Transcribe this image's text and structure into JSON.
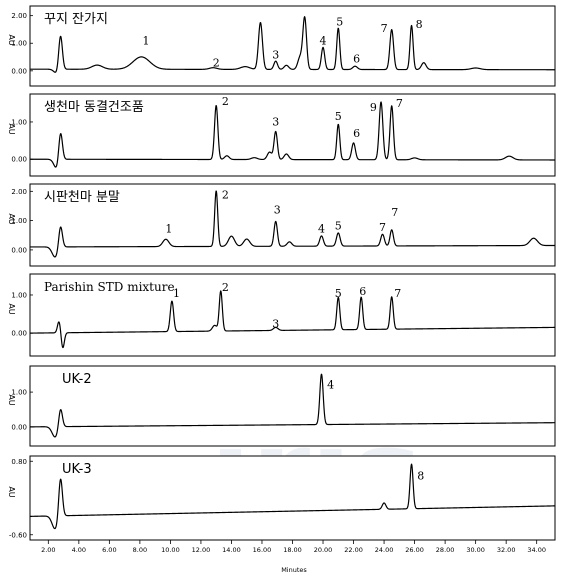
{
  "chart_data": {
    "type": "line",
    "xlabel": "Minutes",
    "xlim": [
      0.8,
      35.2
    ],
    "xticks": [
      "2.00",
      "4.00",
      "6.00",
      "8.00",
      "10.00",
      "12.00",
      "14.00",
      "16.00",
      "18.00",
      "20.00",
      "22.00",
      "24.00",
      "26.00",
      "28.00",
      "30.00",
      "32.00",
      "34.00"
    ],
    "xtick_values": [
      2,
      4,
      6,
      8,
      10,
      12,
      14,
      16,
      18,
      20,
      22,
      24,
      26,
      28,
      30,
      32,
      34
    ],
    "watermark": "iris",
    "panels": [
      {
        "title": "꾸지 잔가지",
        "yunit": "AU",
        "yticks": [
          "2.00",
          "1.00",
          "0.00"
        ],
        "ytick_values": [
          2.0,
          1.0,
          0.0
        ],
        "ylim": [
          -0.55,
          2.35
        ],
        "baseline": [
          [
            0.8,
            0.06
          ],
          [
            35.2,
            0.04
          ]
        ],
        "peaks": [
          {
            "t": 2.55,
            "h": -0.15,
            "w": 0.18
          },
          {
            "t": 2.8,
            "h": 1.25,
            "w": 0.12
          },
          {
            "t": 5.2,
            "h": 0.15,
            "w": 0.35
          },
          {
            "t": 8.1,
            "h": 0.45,
            "w": 0.55
          },
          {
            "t": 12.8,
            "h": 0.06,
            "w": 0.25
          },
          {
            "t": 14.9,
            "h": 0.1,
            "w": 0.3
          },
          {
            "t": 15.9,
            "h": 1.7,
            "w": 0.13
          },
          {
            "t": 16.9,
            "h": 0.3,
            "w": 0.12
          },
          {
            "t": 17.6,
            "h": 0.15,
            "w": 0.15
          },
          {
            "t": 18.5,
            "h": 0.45,
            "w": 0.15
          },
          {
            "t": 18.8,
            "h": 1.85,
            "w": 0.12
          },
          {
            "t": 20.0,
            "h": 0.8,
            "w": 0.11
          },
          {
            "t": 21.0,
            "h": 1.5,
            "w": 0.1
          },
          {
            "t": 22.1,
            "h": 0.12,
            "w": 0.15
          },
          {
            "t": 24.5,
            "h": 1.45,
            "w": 0.12
          },
          {
            "t": 25.8,
            "h": 1.6,
            "w": 0.1
          },
          {
            "t": 26.6,
            "h": 0.25,
            "w": 0.15
          },
          {
            "t": 30.0,
            "h": 0.06,
            "w": 0.3
          }
        ],
        "labels": [
          {
            "text": "1",
            "t": 8.4,
            "v": 0.95
          },
          {
            "text": "2",
            "t": 13.0,
            "v": 0.15
          },
          {
            "text": "3",
            "t": 16.9,
            "v": 0.45
          },
          {
            "text": "4",
            "t": 20.0,
            "v": 0.95
          },
          {
            "text": "5",
            "t": 21.1,
            "v": 1.65
          },
          {
            "text": "6",
            "t": 22.2,
            "v": 0.3
          },
          {
            "text": "7",
            "t": 24.0,
            "v": 1.4
          },
          {
            "text": "8",
            "t": 26.3,
            "v": 1.55
          }
        ]
      },
      {
        "title": "생천마 동결건조품",
        "yunit": "AU",
        "yticks": [
          "1.00",
          "0.00"
        ],
        "ytick_values": [
          1.0,
          0.0
        ],
        "ylim": [
          -0.45,
          1.75
        ],
        "baseline": [
          [
            0.8,
            0.0
          ],
          [
            35.2,
            -0.02
          ]
        ],
        "peaks": [
          {
            "t": 2.55,
            "h": -0.25,
            "w": 0.18
          },
          {
            "t": 2.8,
            "h": 0.78,
            "w": 0.12
          },
          {
            "t": 13.0,
            "h": 1.45,
            "w": 0.11
          },
          {
            "t": 13.7,
            "h": 0.1,
            "w": 0.15
          },
          {
            "t": 15.5,
            "h": 0.05,
            "w": 0.2
          },
          {
            "t": 16.5,
            "h": 0.2,
            "w": 0.15
          },
          {
            "t": 16.9,
            "h": 0.75,
            "w": 0.11
          },
          {
            "t": 17.6,
            "h": 0.15,
            "w": 0.15
          },
          {
            "t": 21.0,
            "h": 0.95,
            "w": 0.1
          },
          {
            "t": 22.0,
            "h": 0.45,
            "w": 0.12
          },
          {
            "t": 23.8,
            "h": 1.55,
            "w": 0.12
          },
          {
            "t": 24.5,
            "h": 1.45,
            "w": 0.11
          },
          {
            "t": 26.0,
            "h": 0.05,
            "w": 0.2
          },
          {
            "t": 32.2,
            "h": 0.1,
            "w": 0.25
          }
        ],
        "labels": [
          {
            "text": "2",
            "t": 13.6,
            "v": 1.45
          },
          {
            "text": "3",
            "t": 16.9,
            "v": 0.9
          },
          {
            "text": "5",
            "t": 21.0,
            "v": 1.05
          },
          {
            "text": "6",
            "t": 22.2,
            "v": 0.6
          },
          {
            "text": "9",
            "t": 23.3,
            "v": 1.3
          },
          {
            "text": "7",
            "t": 25.0,
            "v": 1.4
          }
        ]
      },
      {
        "title": "시판천마 분말",
        "yunit": "AU",
        "yticks": [
          "2.00",
          "1.00",
          "0.00"
        ],
        "ytick_values": [
          2.0,
          1.0,
          0.0
        ],
        "ylim": [
          -0.55,
          2.25
        ],
        "baseline": [
          [
            0.8,
            0.1
          ],
          [
            35.2,
            0.15
          ]
        ],
        "peaks": [
          {
            "t": 2.45,
            "h": -0.35,
            "w": 0.2
          },
          {
            "t": 2.8,
            "h": 0.75,
            "w": 0.12
          },
          {
            "t": 9.7,
            "h": 0.25,
            "w": 0.2
          },
          {
            "t": 13.0,
            "h": 1.9,
            "w": 0.1
          },
          {
            "t": 14.0,
            "h": 0.35,
            "w": 0.2
          },
          {
            "t": 15.0,
            "h": 0.25,
            "w": 0.2
          },
          {
            "t": 16.9,
            "h": 0.85,
            "w": 0.11
          },
          {
            "t": 17.8,
            "h": 0.15,
            "w": 0.15
          },
          {
            "t": 19.9,
            "h": 0.35,
            "w": 0.12
          },
          {
            "t": 21.0,
            "h": 0.45,
            "w": 0.12
          },
          {
            "t": 23.9,
            "h": 0.4,
            "w": 0.12
          },
          {
            "t": 24.5,
            "h": 0.55,
            "w": 0.11
          },
          {
            "t": 33.8,
            "h": 0.25,
            "w": 0.25
          }
        ],
        "labels": [
          {
            "text": "1",
            "t": 9.9,
            "v": 0.6
          },
          {
            "text": "2",
            "t": 13.6,
            "v": 1.75
          },
          {
            "text": "3",
            "t": 17.0,
            "v": 1.25
          },
          {
            "text": "4",
            "t": 19.9,
            "v": 0.6
          },
          {
            "text": "5",
            "t": 21.0,
            "v": 0.7
          },
          {
            "text": "7",
            "t": 23.9,
            "v": 0.65
          },
          {
            "text": "7",
            "t": 24.7,
            "v": 1.15
          }
        ]
      },
      {
        "title": "Parishin STD mixture",
        "yunit": "AU",
        "yticks": [
          "1.00",
          "0.00"
        ],
        "ytick_values": [
          1.0,
          0.0
        ],
        "ylim": [
          -0.6,
          1.55
        ],
        "baseline": [
          [
            0.8,
            0.0
          ],
          [
            35.2,
            0.15
          ]
        ],
        "peaks": [
          {
            "t": 2.7,
            "h": 0.3,
            "w": 0.1
          },
          {
            "t": 2.95,
            "h": -0.4,
            "w": 0.1
          },
          {
            "t": 10.1,
            "h": 0.8,
            "w": 0.11
          },
          {
            "t": 12.9,
            "h": 0.15,
            "w": 0.15
          },
          {
            "t": 13.3,
            "h": 1.05,
            "w": 0.1
          },
          {
            "t": 16.9,
            "h": 0.08,
            "w": 0.15
          },
          {
            "t": 21.0,
            "h": 0.85,
            "w": 0.1
          },
          {
            "t": 22.5,
            "h": 0.85,
            "w": 0.1
          },
          {
            "t": 24.5,
            "h": 0.85,
            "w": 0.1
          }
        ],
        "labels": [
          {
            "text": "1",
            "t": 10.4,
            "v": 0.95
          },
          {
            "text": "2",
            "t": 13.6,
            "v": 1.1
          },
          {
            "text": "3",
            "t": 16.9,
            "v": 0.15
          },
          {
            "text": "5",
            "t": 21.0,
            "v": 0.95
          },
          {
            "text": "6",
            "t": 22.6,
            "v": 1.0
          },
          {
            "text": "7",
            "t": 24.9,
            "v": 0.95
          }
        ]
      },
      {
        "title": "UK-2",
        "yunit": "AU",
        "yticks": [
          "1.00",
          "0.00"
        ],
        "ytick_values": [
          1.0,
          0.0
        ],
        "ylim": [
          -0.55,
          1.75
        ],
        "baseline": [
          [
            0.8,
            0.0
          ],
          [
            35.2,
            0.12
          ]
        ],
        "peaks": [
          {
            "t": 2.45,
            "h": -0.3,
            "w": 0.2
          },
          {
            "t": 2.8,
            "h": 0.55,
            "w": 0.12
          },
          {
            "t": 19.9,
            "h": 1.45,
            "w": 0.11
          }
        ],
        "labels": [
          {
            "text": "4",
            "t": 20.5,
            "v": 1.1
          }
        ]
      },
      {
        "title": "UK-3",
        "yunit": "AU",
        "yticks": [
          "0.80",
          "-0.60"
        ],
        "ytick_values": [
          0.8,
          -0.6
        ],
        "ylim": [
          -0.7,
          0.9
        ],
        "baseline": [
          [
            0.8,
            -0.25
          ],
          [
            35.2,
            -0.05
          ]
        ],
        "peaks": [
          {
            "t": 2.45,
            "h": -0.25,
            "w": 0.2
          },
          {
            "t": 2.8,
            "h": 0.75,
            "w": 0.12
          },
          {
            "t": 24.0,
            "h": 0.12,
            "w": 0.12
          },
          {
            "t": 25.8,
            "h": 0.85,
            "w": 0.1
          }
        ],
        "labels": [
          {
            "text": "8",
            "t": 26.4,
            "v": 0.45
          }
        ]
      }
    ]
  }
}
